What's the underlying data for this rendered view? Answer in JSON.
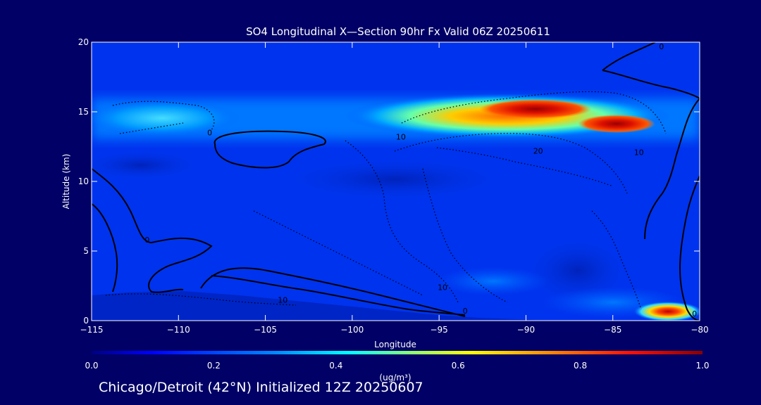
{
  "chart_data": {
    "type": "heatmap",
    "title": "SO4 Longitudinal X—Section 90hr  Fx Valid 06Z 20250611",
    "xlabel": "Longitude",
    "ylabel": "Altitude (km)",
    "xlim": [
      -115,
      -80
    ],
    "ylim": [
      0,
      20
    ],
    "x_ticks": [
      -115,
      -110,
      -105,
      -100,
      -95,
      -90,
      -85,
      -80
    ],
    "x_tick_labels": [
      "−115",
      "−110",
      "−105",
      "−100",
      "−95",
      "−90",
      "−85",
      "−80"
    ],
    "y_ticks": [
      0,
      5,
      10,
      15,
      20
    ],
    "y_tick_labels": [
      "0",
      "5",
      "10",
      "15",
      "20"
    ],
    "colorbar": {
      "label": "(ug/m³)",
      "min": 0.0,
      "max": 1.0,
      "ticks": [
        0.0,
        0.2,
        0.4,
        0.6,
        0.8,
        1.0
      ],
      "tick_labels": [
        "0.0",
        "0.2",
        "0.4",
        "0.6",
        "0.8",
        "1.0"
      ]
    },
    "field_features": [
      {
        "lon": -90,
        "alt": 15.0,
        "value": 0.85
      },
      {
        "lon": -85,
        "alt": 14.0,
        "value": 0.95
      },
      {
        "lon": -97,
        "alt": 15.0,
        "value": 0.45
      },
      {
        "lon": -81.5,
        "alt": 0.6,
        "value": 0.85
      },
      {
        "lon": -110,
        "alt": 13.8,
        "value": 0.3
      }
    ],
    "contour_labels": [
      {
        "text": "0",
        "lon": -108.2,
        "alt": 13.3
      },
      {
        "text": "0",
        "lon": -111.8,
        "alt": 5.6
      },
      {
        "text": "0",
        "lon": -80.3,
        "alt": 0.3
      },
      {
        "text": "0",
        "lon": -93.5,
        "alt": 0.5
      },
      {
        "text": "0",
        "lon": -82.2,
        "alt": 19.5
      },
      {
        "text": "10",
        "lon": -97.2,
        "alt": 13.0
      },
      {
        "text": "20",
        "lon": -89.3,
        "alt": 12.0
      },
      {
        "text": "10",
        "lon": -83.5,
        "alt": 11.9
      },
      {
        "text": "10",
        "lon": -94.8,
        "alt": 2.2
      },
      {
        "text": "10",
        "lon": -104.0,
        "alt": 1.3
      }
    ]
  },
  "footer": "Chicago/Detroit (42°N) Initialized 12Z 20250607"
}
